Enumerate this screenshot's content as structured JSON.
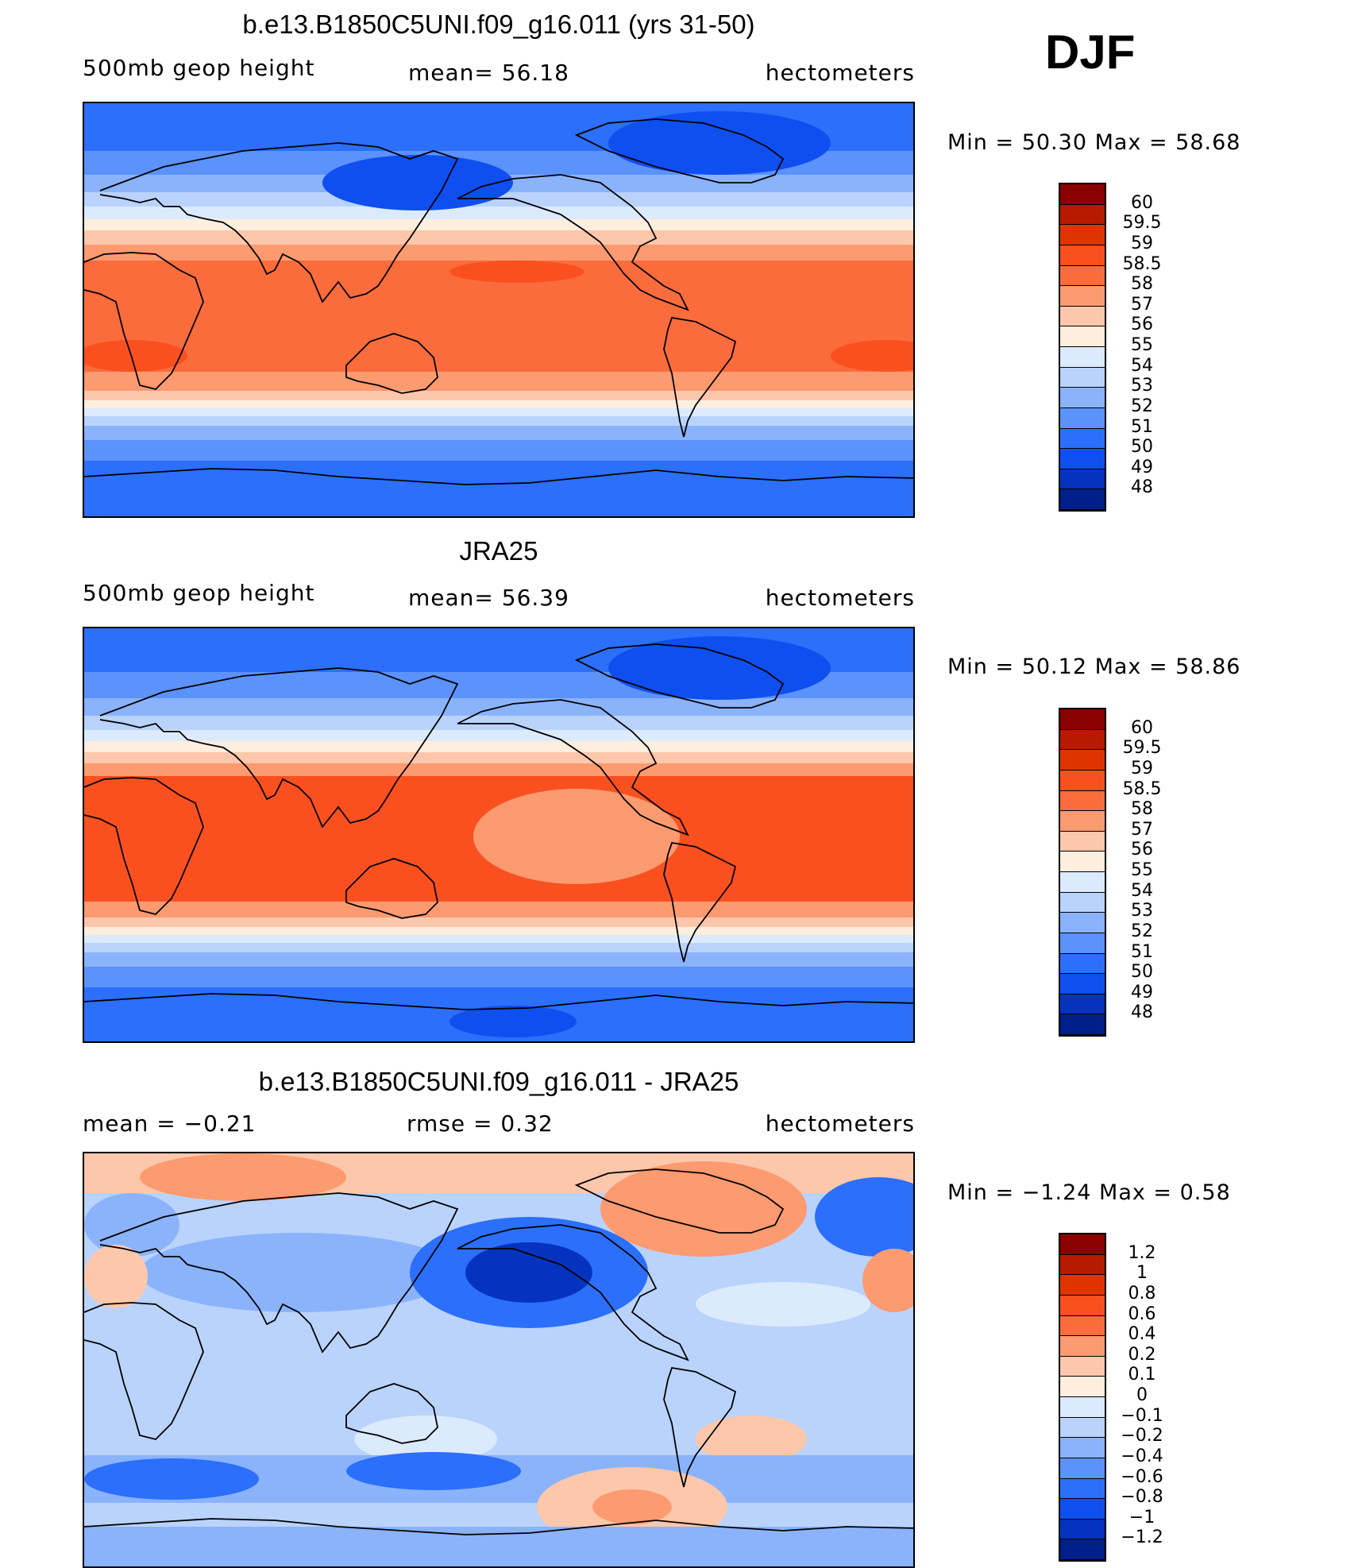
{
  "season": "DJF",
  "panels": [
    {
      "title": "b.e13.B1850C5UNI.f09_g16.011 (yrs 31-50)",
      "left_label": "500mb geop height",
      "center_label": "mean=  56.18",
      "right_label": "hectometers",
      "min_max": "Min =  50.30 Max =  58.68",
      "colorbar": {
        "labels": [
          "60",
          "59.5",
          "59",
          "58.5",
          "58",
          "57",
          "56",
          "55",
          "54",
          "53",
          "52",
          "51",
          "50",
          "49",
          "48"
        ],
        "colors": [
          "#8b0000",
          "#b81a00",
          "#e03400",
          "#fa5020",
          "#fa6c3c",
          "#fc9a70",
          "#fdc7ab",
          "#fdeedd",
          "#dceafd",
          "#b9d3fd",
          "#8ab3fc",
          "#5b92fb",
          "#2b6ffa",
          "#0f4ff0",
          "#0533c0",
          "#001f88"
        ]
      },
      "map_colors": {
        "polar_north": "#2b6ffa",
        "arctic_low": "#0f4ff0",
        "midlat_n": [
          "#5b92fb",
          "#8ab3fc",
          "#b9d3fd",
          "#dceafd",
          "#fdeedd",
          "#fdc7ab",
          "#fc9a70"
        ],
        "tropics": "#fa6c3c",
        "tropics_max": "#fa5020",
        "midlat_s": [
          "#fc9a70",
          "#fdc7ab",
          "#fdeedd",
          "#dceafd",
          "#b9d3fd",
          "#8ab3fc",
          "#5b92fb"
        ],
        "polar_south": "#2b6ffa"
      }
    },
    {
      "title": "JRA25",
      "left_label": "500mb geop height",
      "center_label": "mean=  56.39",
      "right_label": "hectometers",
      "min_max": "Min =  50.12 Max =  58.86",
      "colorbar": {
        "labels": [
          "60",
          "59.5",
          "59",
          "58.5",
          "58",
          "57",
          "56",
          "55",
          "54",
          "53",
          "52",
          "51",
          "50",
          "49",
          "48"
        ],
        "colors": [
          "#8b0000",
          "#b81a00",
          "#e03400",
          "#fa5020",
          "#fa6c3c",
          "#fc9a70",
          "#fdc7ab",
          "#fdeedd",
          "#dceafd",
          "#b9d3fd",
          "#8ab3fc",
          "#5b92fb",
          "#2b6ffa",
          "#0f4ff0",
          "#0533c0",
          "#001f88"
        ]
      },
      "map_colors": {
        "polar_north": "#2b6ffa",
        "arctic_low": "#0f4ff0",
        "midlat_n": [
          "#5b92fb",
          "#8ab3fc",
          "#b9d3fd",
          "#dceafd",
          "#fdeedd",
          "#fdc7ab",
          "#fc9a70"
        ],
        "tropics": "#fa5020",
        "tropics_max": "#fa5020",
        "midlat_s": [
          "#fc9a70",
          "#fdc7ab",
          "#fdeedd",
          "#dceafd",
          "#b9d3fd",
          "#8ab3fc",
          "#5b92fb"
        ],
        "polar_south": "#2b6ffa"
      }
    },
    {
      "title": "b.e13.B1850C5UNI.f09_g16.011 - JRA25",
      "left_label": "mean =   −0.21",
      "center_label": "rmse =    0.32",
      "right_label": "hectometers",
      "min_max": "Min =  −1.24 Max =    0.58",
      "colorbar": {
        "labels": [
          "1.2",
          "1",
          "0.8",
          "0.6",
          "0.4",
          "0.2",
          "0.1",
          "0",
          "−0.1",
          "−0.2",
          "−0.4",
          "−0.6",
          "−0.8",
          "−1",
          "−1.2"
        ],
        "colors": [
          "#8b0000",
          "#b81a00",
          "#e03400",
          "#fa5020",
          "#fa6c3c",
          "#fc9a70",
          "#fdc7ab",
          "#fdeedd",
          "#dceafd",
          "#b9d3fd",
          "#8ab3fc",
          "#5b92fb",
          "#2b6ffa",
          "#0f4ff0",
          "#0533c0",
          "#001f88"
        ]
      },
      "map_colors": {
        "background": "#b9d3fd",
        "anomaly_pos": "#fdc7ab",
        "anomaly_pos_strong": "#fc9a70",
        "anomaly_neg": "#8ab3fc",
        "anomaly_neg_strong": "#2b6ffa",
        "anomaly_neg_max": "#0533c0",
        "near_zero": "#dceafd"
      }
    }
  ]
}
